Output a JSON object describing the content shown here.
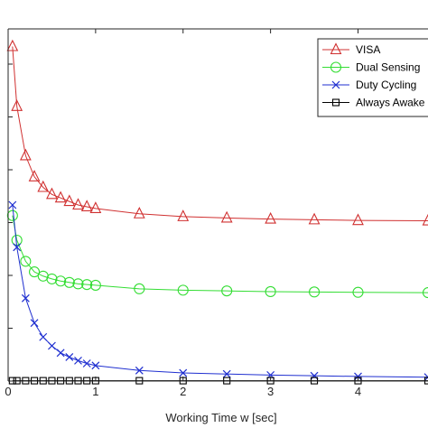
{
  "chart_data": {
    "type": "line",
    "title": "",
    "xlabel": "Working Time w [sec]",
    "ylabel": "",
    "xlim": [
      0,
      4.8
    ],
    "ylim": [
      0,
      1.0
    ],
    "x_ticks": [
      0,
      1,
      2,
      3,
      4
    ],
    "x_tick_labels": [
      "0",
      "1",
      "2",
      "3",
      "4"
    ],
    "y_ticks": [
      0.15,
      0.3,
      0.45,
      0.6,
      0.75,
      0.9
    ],
    "grid": false,
    "legend": {
      "position": "top-right",
      "entries": [
        "VISA",
        "Dual Sensing",
        "Duty Cycling",
        "Always Awake"
      ]
    },
    "series": [
      {
        "name": "VISA",
        "color": "#d03030",
        "marker": "triangle",
        "x": [
          0.05,
          0.1,
          0.2,
          0.3,
          0.4,
          0.5,
          0.6,
          0.7,
          0.8,
          0.9,
          1.0,
          1.5,
          2.0,
          2.5,
          3.0,
          3.5,
          4.0,
          4.8
        ],
        "y": [
          0.95,
          0.78,
          0.64,
          0.58,
          0.55,
          0.53,
          0.52,
          0.51,
          0.5,
          0.495,
          0.49,
          0.475,
          0.467,
          0.463,
          0.46,
          0.458,
          0.456,
          0.455
        ]
      },
      {
        "name": "Dual Sensing",
        "color": "#33dd33",
        "marker": "circle",
        "x": [
          0.05,
          0.1,
          0.2,
          0.3,
          0.4,
          0.5,
          0.6,
          0.7,
          0.8,
          0.9,
          1.0,
          1.5,
          2.0,
          2.5,
          3.0,
          3.5,
          4.0,
          4.8
        ],
        "y": [
          0.47,
          0.4,
          0.34,
          0.31,
          0.298,
          0.29,
          0.284,
          0.28,
          0.276,
          0.274,
          0.272,
          0.262,
          0.258,
          0.256,
          0.254,
          0.253,
          0.252,
          0.251
        ]
      },
      {
        "name": "Duty Cycling",
        "color": "#1f2fd0",
        "marker": "x",
        "x": [
          0.05,
          0.1,
          0.2,
          0.3,
          0.4,
          0.5,
          0.6,
          0.7,
          0.8,
          0.9,
          1.0,
          1.5,
          2.0,
          2.5,
          3.0,
          3.5,
          4.0,
          4.8
        ],
        "y": [
          0.5,
          0.38,
          0.235,
          0.165,
          0.125,
          0.1,
          0.08,
          0.068,
          0.058,
          0.05,
          0.044,
          0.03,
          0.023,
          0.02,
          0.017,
          0.015,
          0.013,
          0.011
        ]
      },
      {
        "name": "Always Awake",
        "color": "#000000",
        "marker": "square",
        "x": [
          0.05,
          0.1,
          0.2,
          0.3,
          0.4,
          0.5,
          0.6,
          0.7,
          0.8,
          0.9,
          1.0,
          1.5,
          2.0,
          2.5,
          3.0,
          3.5,
          4.0,
          4.8
        ],
        "y": [
          0.001,
          0.001,
          0.001,
          0.001,
          0.001,
          0.001,
          0.001,
          0.001,
          0.001,
          0.001,
          0.001,
          0.001,
          0.001,
          0.001,
          0.001,
          0.001,
          0.001,
          0.001
        ]
      }
    ]
  }
}
